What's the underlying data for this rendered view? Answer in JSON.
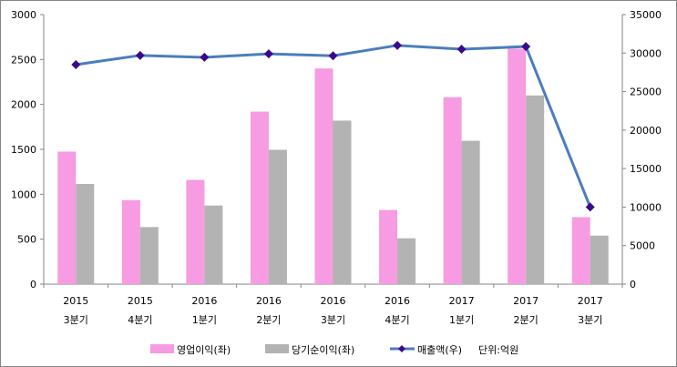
{
  "chart_data": {
    "type": "bar",
    "categories": [
      [
        "2015",
        "3분기"
      ],
      [
        "2015",
        "4분기"
      ],
      [
        "2016",
        "1분기"
      ],
      [
        "2016",
        "2분기"
      ],
      [
        "2016",
        "3분기"
      ],
      [
        "2016",
        "4분기"
      ],
      [
        "2017",
        "1분기"
      ],
      [
        "2017",
        "2분기"
      ],
      [
        "2017",
        "3분기"
      ]
    ],
    "series": [
      {
        "name": "영업이익(좌)",
        "type": "bar",
        "axis": "left",
        "color": "#f79be2",
        "values": [
          1475,
          935,
          1160,
          1920,
          2400,
          825,
          2080,
          2620,
          745
        ]
      },
      {
        "name": "당기순이익(좌)",
        "type": "bar",
        "axis": "left",
        "color": "#b3b3b3",
        "values": [
          1115,
          635,
          875,
          1495,
          1820,
          510,
          1595,
          2100,
          540
        ]
      },
      {
        "name": "매출액(우)",
        "type": "line",
        "axis": "right",
        "color": "#4a7ebb",
        "marker_color": "#3a0a8c",
        "values": [
          28500,
          29700,
          29450,
          29900,
          29650,
          31000,
          30500,
          30850,
          10000
        ]
      }
    ],
    "unit_note": "단위:억원",
    "y_left": {
      "range": [
        0,
        3000
      ],
      "ticks": [
        0,
        500,
        1000,
        1500,
        2000,
        2500,
        3000
      ]
    },
    "y_right": {
      "range": [
        0,
        35000
      ],
      "ticks": [
        0,
        5000,
        10000,
        15000,
        20000,
        25000,
        30000,
        35000
      ]
    },
    "grid": false,
    "legend": "bottom"
  }
}
